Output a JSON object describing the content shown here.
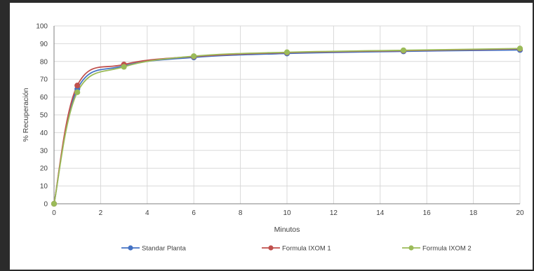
{
  "chart_data": {
    "type": "line",
    "title": "",
    "xlabel": "Minutos",
    "ylabel": "% Recuperación",
    "xlim": [
      0,
      20
    ],
    "ylim": [
      0,
      100
    ],
    "xticks": [
      0,
      2,
      4,
      6,
      8,
      10,
      12,
      14,
      16,
      18,
      20
    ],
    "yticks": [
      0,
      10,
      20,
      30,
      40,
      50,
      60,
      70,
      80,
      90,
      100
    ],
    "grid": true,
    "legend_position": "bottom",
    "series": [
      {
        "name": "Standar Planta",
        "color": "#4472c4",
        "x": [
          0,
          1,
          3,
          6,
          10,
          15,
          20
        ],
        "y": [
          0,
          64.5,
          77.5,
          82.3,
          84.5,
          85.7,
          86.5
        ]
      },
      {
        "name": "Formula IXOM 1",
        "color": "#c0504d",
        "x": [
          0,
          1,
          3,
          6,
          10,
          15,
          20
        ],
        "y": [
          0,
          66.5,
          78.3,
          82.8,
          85.0,
          86.1,
          87.1
        ]
      },
      {
        "name": "Formula IXOM 2",
        "color": "#9bbb59",
        "x": [
          0,
          1,
          3,
          6,
          10,
          15,
          20
        ],
        "y": [
          0,
          62.7,
          77.0,
          83.0,
          85.2,
          86.3,
          87.3
        ]
      }
    ]
  }
}
